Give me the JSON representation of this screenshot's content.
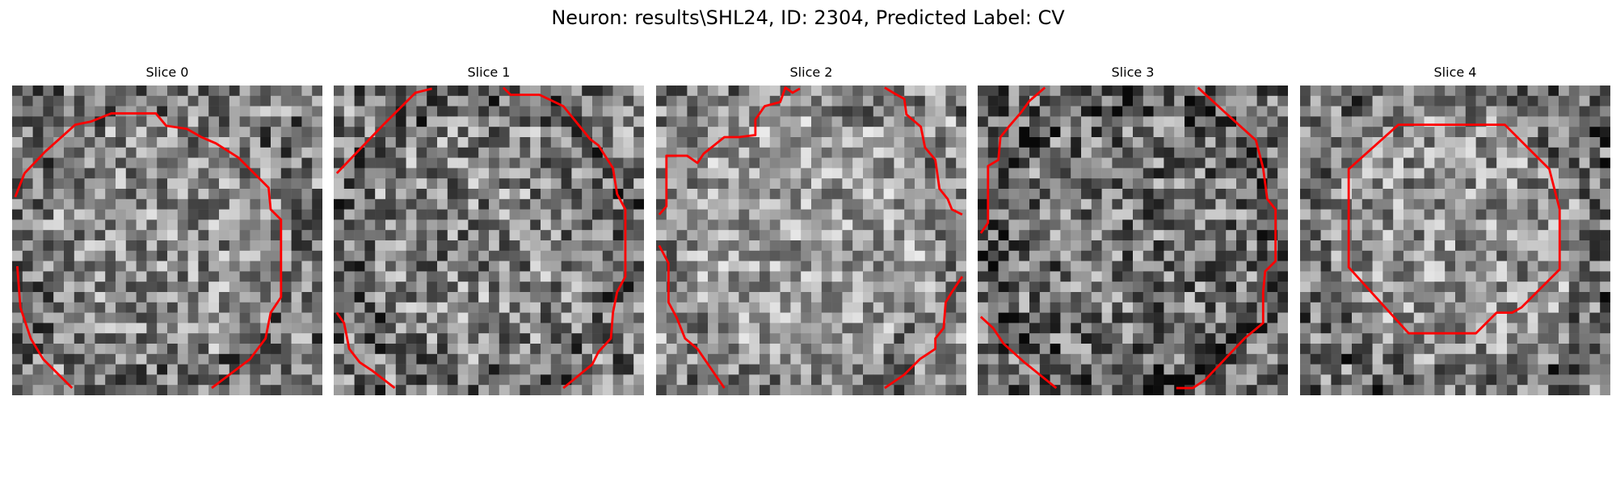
{
  "figure": {
    "title": "Neuron: results\\SHL24, ID: 2304, Predicted Label: CV"
  },
  "colors": {
    "contour": "#ff0000"
  },
  "panels": [
    {
      "title": "Slice 0",
      "contour-icon": "red-outline"
    },
    {
      "title": "Slice 1",
      "contour-icon": "red-outline"
    },
    {
      "title": "Slice 2",
      "contour-icon": "red-outline"
    },
    {
      "title": "Slice 3",
      "contour-icon": "red-outline"
    },
    {
      "title": "Slice 4",
      "contour-icon": "red-outline"
    }
  ]
}
